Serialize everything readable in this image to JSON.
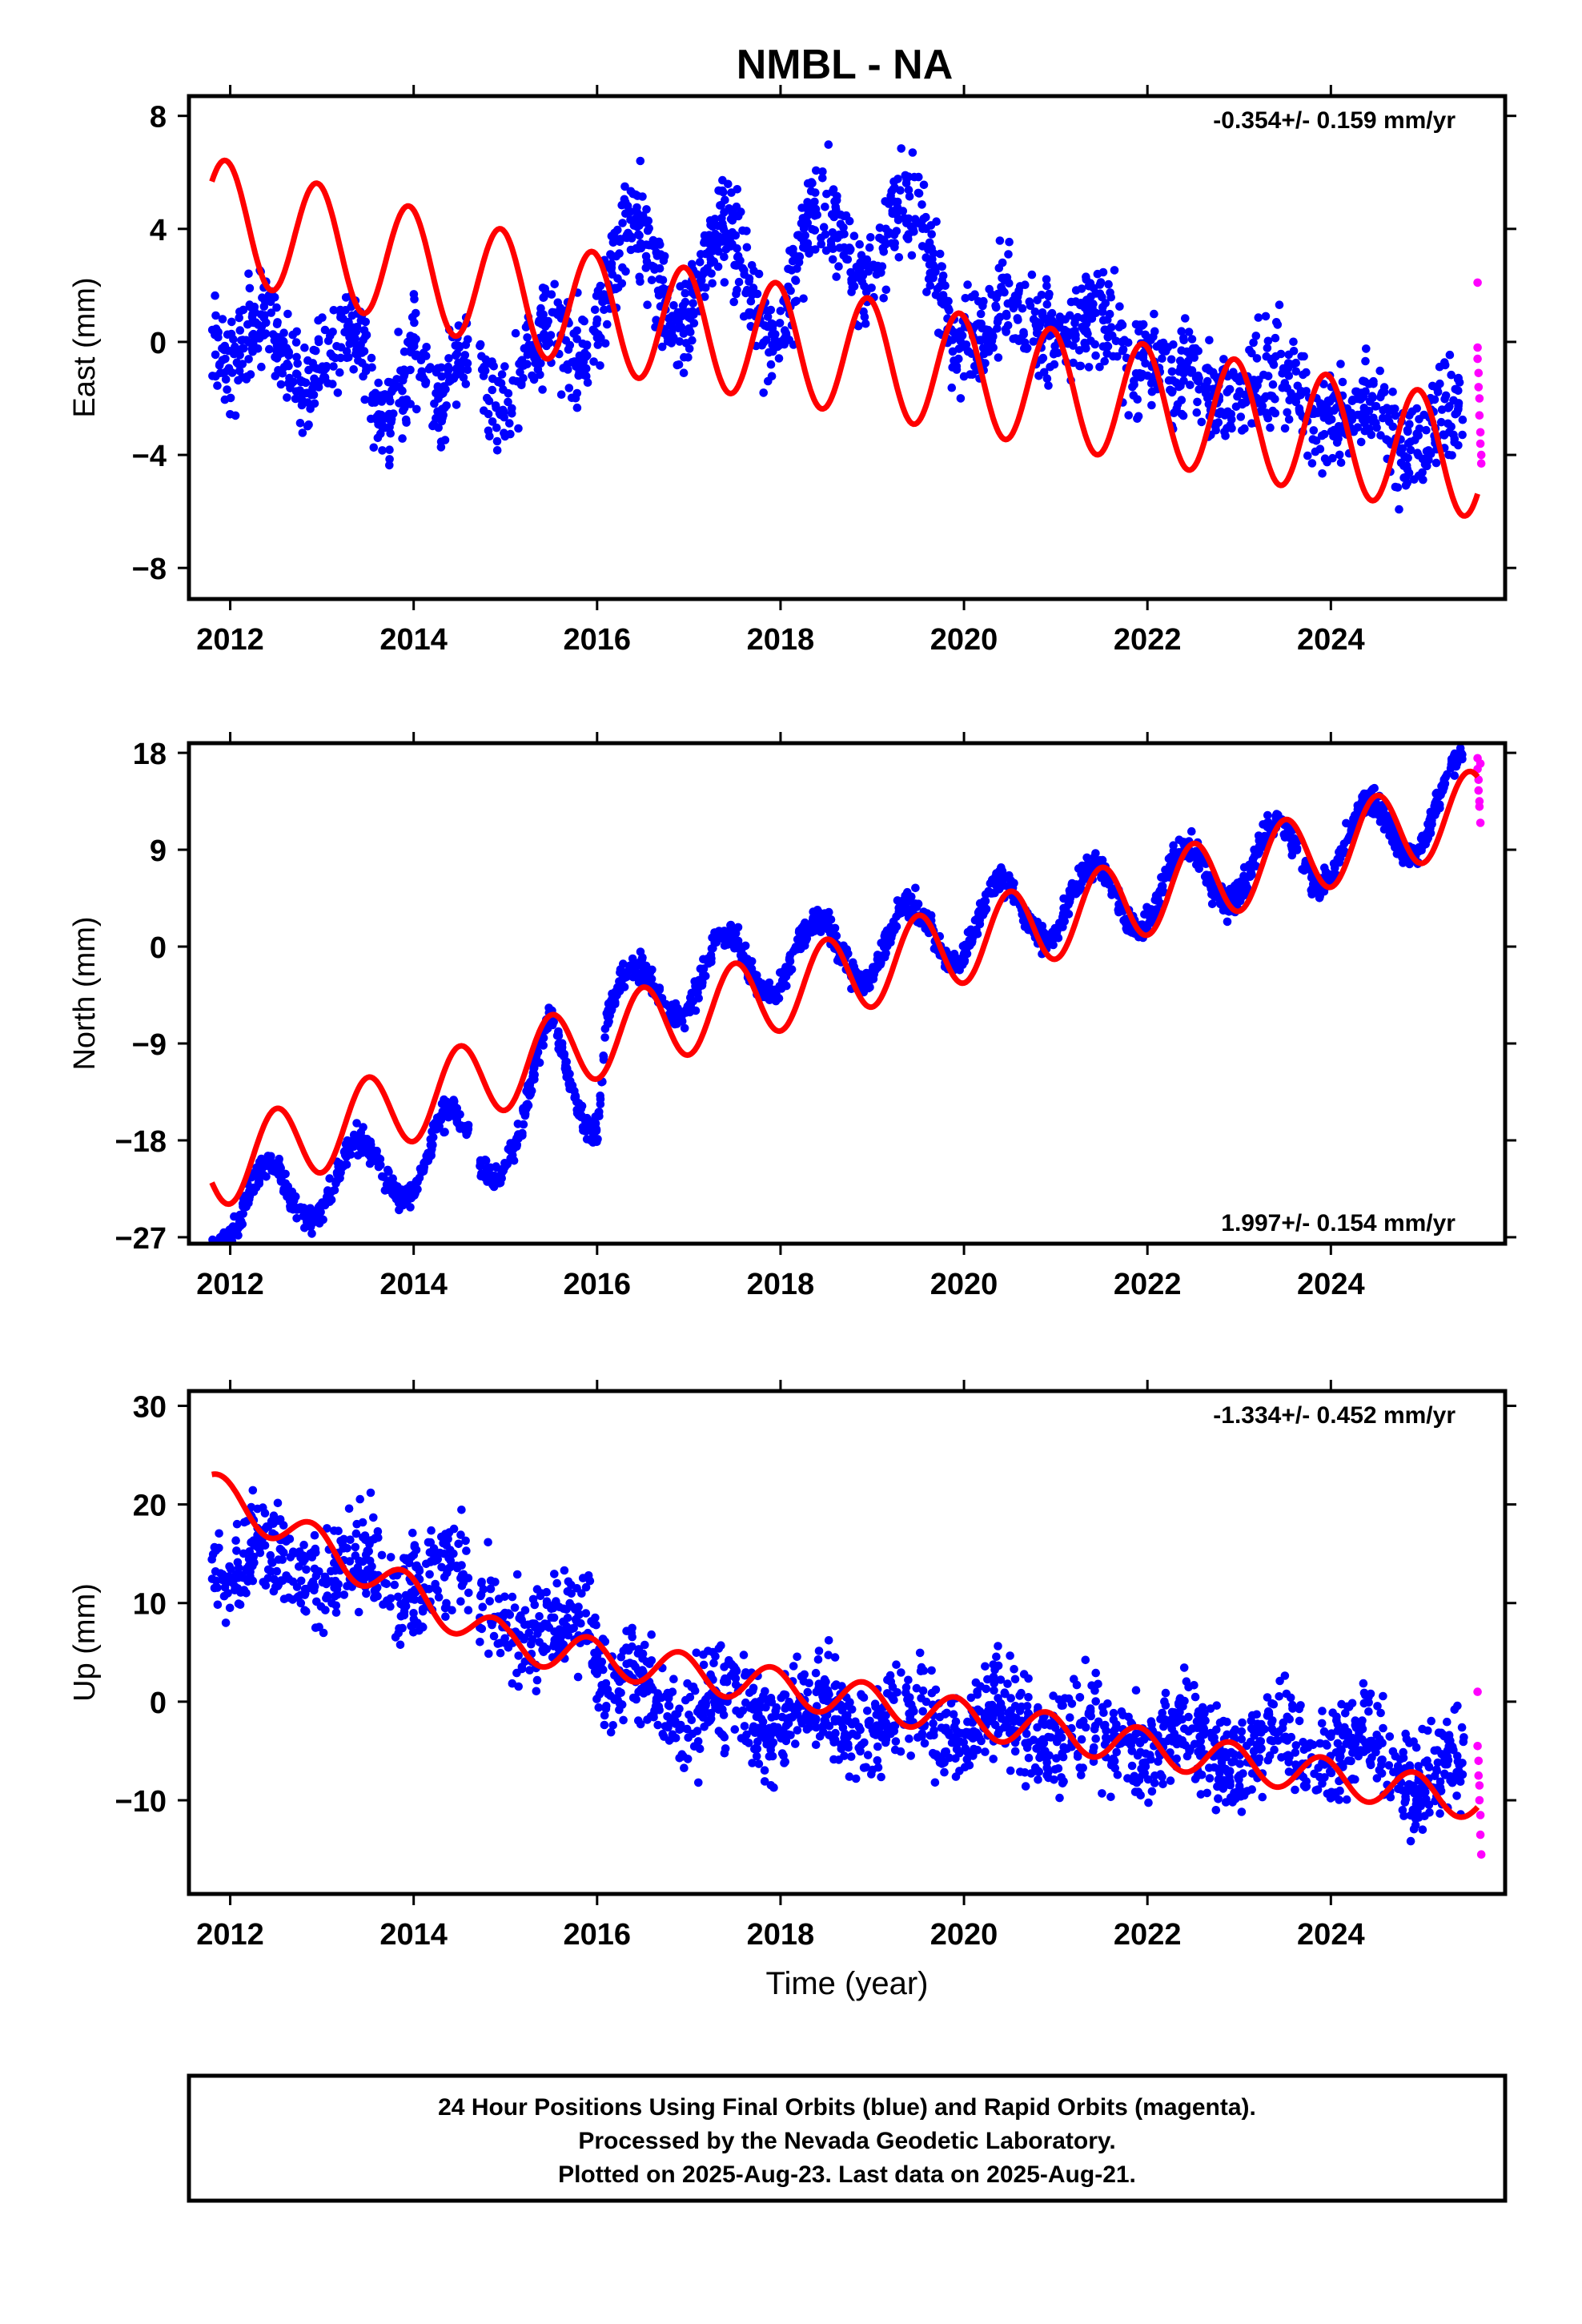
{
  "title": "NMBL - NA",
  "colors": {
    "final": "#0000ff",
    "rapid": "#ff00ff",
    "model": "#ff0000"
  },
  "footer": {
    "line1": "24 Hour Positions Using Final Orbits (blue) and Rapid Orbits (magenta).",
    "line2": "Processed by the Nevada Geodetic Laboratory.",
    "line3": "Plotted on 2025-Aug-23. Last data on 2025-Aug-21."
  },
  "chart_data": [
    {
      "type": "scatter",
      "ylabel": "East (mm)",
      "xlabel": "",
      "rate": "-0.354+/- 0.159 mm/yr",
      "rate_position": "top-right",
      "xlim": [
        2011.55,
        2025.9
      ],
      "ylim": [
        -9.1,
        8.7
      ],
      "xticks": [
        2012,
        2014,
        2016,
        2018,
        2020,
        2022,
        2024
      ],
      "yticks": [
        -8,
        -4,
        0,
        4,
        8
      ],
      "ytick_labels": [
        "−8",
        "−4",
        "0",
        "4",
        "8"
      ],
      "series": [
        {
          "role": "final-orbits",
          "start": 2011.8,
          "end": 2025.45,
          "trend_points": [
            [
              2011.8,
              1.5
            ],
            [
              2012.5,
              -1.5
            ],
            [
              2013,
              1
            ],
            [
              2013.6,
              -3
            ],
            [
              2014,
              1.5
            ],
            [
              2014.3,
              -4
            ],
            [
              2014.7,
              0.5
            ],
            [
              2015.3,
              -2
            ],
            [
              2016,
              2
            ],
            [
              2017,
              2.5
            ],
            [
              2018,
              2
            ],
            [
              2018.8,
              4
            ],
            [
              2019.8,
              2.5
            ],
            [
              2020.3,
              -1
            ],
            [
              2020.9,
              2.5
            ],
            [
              2021.3,
              -1
            ],
            [
              2022,
              1
            ],
            [
              2022.3,
              -3
            ],
            [
              2023,
              0
            ],
            [
              2023.3,
              -3
            ],
            [
              2024,
              -1
            ],
            [
              2024.3,
              -4
            ],
            [
              2025,
              -2
            ],
            [
              2025.45,
              -4.5
            ]
          ],
          "seasonal_amplitude": 1.8,
          "scatter_sd": 1.2,
          "gaps": [
            [
              2014.6,
              2014.72
            ],
            [
              2015.9,
              2015.95
            ]
          ]
        },
        {
          "role": "rapid-orbits",
          "points": [
            [
              2025.6,
              2.1
            ],
            [
              2025.6,
              -0.2
            ],
            [
              2025.6,
              -0.6
            ],
            [
              2025.61,
              -1.1
            ],
            [
              2025.61,
              -1.6
            ],
            [
              2025.62,
              -2.0
            ],
            [
              2025.62,
              -2.6
            ],
            [
              2025.63,
              -3.2
            ],
            [
              2025.63,
              -3.6
            ],
            [
              2025.64,
              -4.0
            ],
            [
              2025.64,
              -4.3
            ]
          ]
        },
        {
          "role": "model",
          "trend": [
            -0.354,
            0.0,
            2018.7
          ],
          "offset_anchors": [
            [
              2011.8,
              2.0
            ],
            [
              2016.0,
              0.1
            ],
            [
              2025.6,
              -1.7
            ]
          ],
          "seasonal_amplitude": 2.1,
          "peak_phase": 0.95
        }
      ]
    },
    {
      "type": "scatter",
      "ylabel": "North (mm)",
      "xlabel": "",
      "rate": "1.997+/- 0.154 mm/yr",
      "rate_position": "bottom-right",
      "xlim": [
        2011.55,
        2025.9
      ],
      "ylim": [
        -27.6,
        18.9
      ],
      "xticks": [
        2012,
        2014,
        2016,
        2018,
        2020,
        2022,
        2024
      ],
      "yticks": [
        -27,
        -18,
        -9,
        0,
        9,
        18
      ],
      "ytick_labels": [
        "−27",
        "−18",
        "−9",
        "0",
        "9",
        "18"
      ],
      "series": [
        {
          "role": "final-orbits",
          "start": 2011.8,
          "end": 2025.45,
          "trend_points": [
            [
              2011.8,
              -25
            ],
            [
              2013,
              -22
            ],
            [
              2014,
              -20
            ],
            [
              2014.4,
              -18
            ],
            [
              2014.7,
              -19
            ],
            [
              2015.2,
              -17
            ],
            [
              2015.5,
              -9
            ],
            [
              2016,
              -15
            ],
            [
              2016.1,
              -6
            ],
            [
              2017,
              -3
            ],
            [
              2018,
              -1
            ],
            [
              2019,
              0
            ],
            [
              2020,
              2
            ],
            [
              2021,
              4
            ],
            [
              2022,
              5
            ],
            [
              2023,
              7.5
            ],
            [
              2024,
              9
            ],
            [
              2025,
              12
            ],
            [
              2025.45,
              15
            ]
          ],
          "seasonal_amplitude": 3.2,
          "scatter_sd": 0.9,
          "gaps": [
            [
              2014.6,
              2014.72
            ]
          ]
        },
        {
          "role": "rapid-orbits",
          "points": [
            [
              2025.6,
              17.5
            ],
            [
              2025.6,
              16.5
            ],
            [
              2025.61,
              15.5
            ],
            [
              2025.61,
              14.5
            ],
            [
              2025.62,
              13.5
            ],
            [
              2025.62,
              13
            ],
            [
              2025.63,
              11.5
            ],
            [
              2025.63,
              17
            ]
          ]
        },
        {
          "role": "model",
          "trend": [
            1.997,
            -0.2,
            2018.7
          ],
          "offset_anchors": [
            [
              2011.8,
              -6.8
            ],
            [
              2016.0,
              -3.0
            ],
            [
              2025.6,
              -0.8
            ]
          ],
          "seasonal_amplitude": 3.7,
          "peak_phase": 0.5
        }
      ]
    },
    {
      "type": "scatter",
      "ylabel": "Up (mm)",
      "xlabel": "Time (year)",
      "rate": "-1.334+/- 0.452 mm/yr",
      "rate_position": "top-right",
      "xlim": [
        2011.55,
        2025.9
      ],
      "ylim": [
        -19.5,
        31.5
      ],
      "xticks": [
        2012,
        2014,
        2016,
        2018,
        2020,
        2022,
        2024
      ],
      "yticks": [
        -10,
        0,
        10,
        20,
        30
      ],
      "ytick_labels": [
        "−10",
        "0",
        "10",
        "20",
        "30"
      ],
      "series": [
        {
          "role": "final-orbits",
          "start": 2011.8,
          "end": 2025.45,
          "trend_points": [
            [
              2011.8,
              15
            ],
            [
              2014.5,
              12
            ],
            [
              2014.9,
              11
            ],
            [
              2015.3,
              4
            ],
            [
              2015.9,
              11
            ],
            [
              2016.1,
              2
            ],
            [
              2017,
              -1
            ],
            [
              2018,
              -1
            ],
            [
              2019,
              -2
            ],
            [
              2020,
              -2
            ],
            [
              2021,
              -3
            ],
            [
              2022,
              -4
            ],
            [
              2023,
              -5
            ],
            [
              2024,
              -4
            ],
            [
              2025.45,
              -8
            ]
          ],
          "seasonal_amplitude": 2.0,
          "scatter_sd": 3.4,
          "gaps": [
            [
              2014.6,
              2014.72
            ]
          ]
        },
        {
          "role": "rapid-orbits",
          "points": [
            [
              2025.6,
              1
            ],
            [
              2025.6,
              -4.5
            ],
            [
              2025.61,
              -6
            ],
            [
              2025.61,
              -7.5
            ],
            [
              2025.62,
              -8.5
            ],
            [
              2025.62,
              -10
            ],
            [
              2025.63,
              -11.5
            ],
            [
              2025.63,
              -13.5
            ],
            [
              2025.64,
              -15.5
            ]
          ]
        },
        {
          "role": "model",
          "trend": [
            -1.334,
            -1.3,
            2018.7
          ],
          "offset_anchors": [
            [
              2011.8,
              13.6
            ],
            [
              2015.0,
              2.4
            ],
            [
              2025.6,
              0.4
            ]
          ],
          "seasonal_amplitude": 1.9,
          "peak_phase": 0.9
        }
      ]
    }
  ]
}
